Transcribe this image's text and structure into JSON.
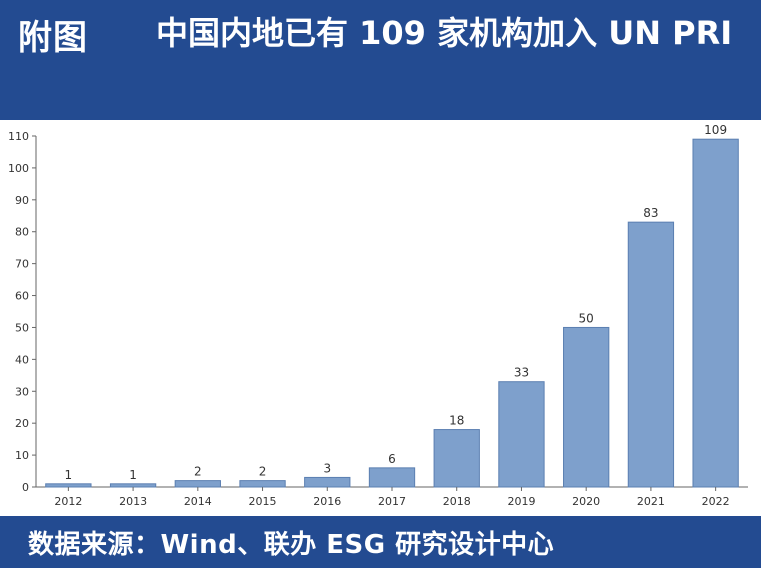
{
  "header": {
    "fig_label": "附图",
    "title": "中国内地已有 109 家机构加入 UN PRI"
  },
  "footer": {
    "source": "数据来源：Wind、联办 ESG 研究设计中心"
  },
  "colors": {
    "header_bg": "#234b91",
    "bar": "#7ea0cc",
    "bar_stroke": "#5b7fb1",
    "axis": "#666666"
  },
  "chart_data": {
    "type": "bar",
    "title": "",
    "xlabel": "",
    "ylabel": "",
    "categories": [
      "2012",
      "2013",
      "2014",
      "2015",
      "2016",
      "2017",
      "2018",
      "2019",
      "2020",
      "2021",
      "2022"
    ],
    "values": [
      1,
      1,
      2,
      2,
      3,
      6,
      18,
      33,
      50,
      83,
      109
    ],
    "ylim": [
      0,
      110
    ],
    "yticks": [
      0,
      10,
      20,
      30,
      40,
      50,
      60,
      70,
      80,
      90,
      100,
      110
    ],
    "data_labels": true,
    "grid": false
  }
}
